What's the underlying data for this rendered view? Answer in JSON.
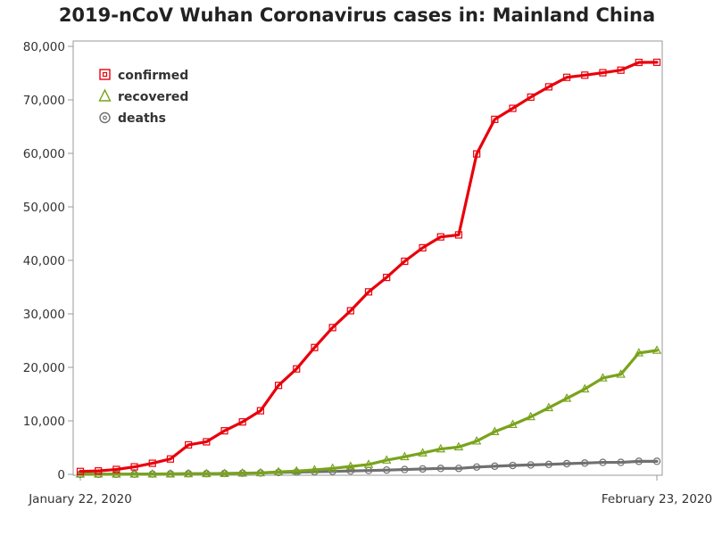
{
  "chart_data": {
    "type": "line",
    "title": "2019-nCoV Wuhan Coronavirus cases in: Mainland China",
    "xlabel": "",
    "ylabel": "",
    "x_tick_labels": [
      "January 22, 2020",
      "February 23, 2020"
    ],
    "x": [
      "2020-01-22",
      "2020-01-23",
      "2020-01-24",
      "2020-01-25",
      "2020-01-26",
      "2020-01-27",
      "2020-01-28",
      "2020-01-29",
      "2020-01-30",
      "2020-01-31",
      "2020-02-01",
      "2020-02-02",
      "2020-02-03",
      "2020-02-04",
      "2020-02-05",
      "2020-02-06",
      "2020-02-07",
      "2020-02-08",
      "2020-02-09",
      "2020-02-10",
      "2020-02-11",
      "2020-02-12",
      "2020-02-13",
      "2020-02-14",
      "2020-02-15",
      "2020-02-16",
      "2020-02-17",
      "2020-02-18",
      "2020-02-19",
      "2020-02-20",
      "2020-02-21",
      "2020-02-22",
      "2020-02-23"
    ],
    "ylim": [
      0,
      80000
    ],
    "y_ticks": [
      0,
      10000,
      20000,
      30000,
      40000,
      50000,
      60000,
      70000,
      80000
    ],
    "y_tick_labels": [
      "0",
      "10,000",
      "20,000",
      "30,000",
      "40,000",
      "50,000",
      "60,000",
      "70,000",
      "80,000"
    ],
    "grid": false,
    "legend_position": "top-left",
    "series": [
      {
        "name": "confirmed",
        "color": "#e8000b",
        "marker": "square",
        "values": [
          548,
          643,
          920,
          1406,
          2075,
          2877,
          5509,
          6087,
          8141,
          9802,
          11891,
          16630,
          19716,
          23707,
          27440,
          30587,
          34110,
          36814,
          39829,
          42354,
          44386,
          44759,
          59895,
          66358,
          68413,
          70513,
          72434,
          74211,
          74619,
          75077,
          75550,
          77001,
          77022
        ]
      },
      {
        "name": "recovered",
        "color": "#79a31d",
        "marker": "triangle",
        "values": [
          28,
          30,
          36,
          39,
          49,
          58,
          101,
          120,
          135,
          214,
          275,
          463,
          614,
          843,
          1115,
          1476,
          1838,
          2649,
          3281,
          3996,
          4740,
          5112,
          6213,
          7973,
          9294,
          10748,
          12455,
          14199,
          15952,
          18002,
          18693,
          22687,
          23170
        ]
      },
      {
        "name": "deaths",
        "color": "#707070",
        "marker": "circle",
        "values": [
          17,
          18,
          26,
          42,
          56,
          82,
          131,
          133,
          171,
          213,
          259,
          361,
          425,
          490,
          562,
          632,
          717,
          804,
          904,
          1011,
          1111,
          1116,
          1368,
          1520,
          1662,
          1765,
          1863,
          2002,
          2114,
          2236,
          2236,
          2441,
          2443
        ]
      }
    ]
  }
}
